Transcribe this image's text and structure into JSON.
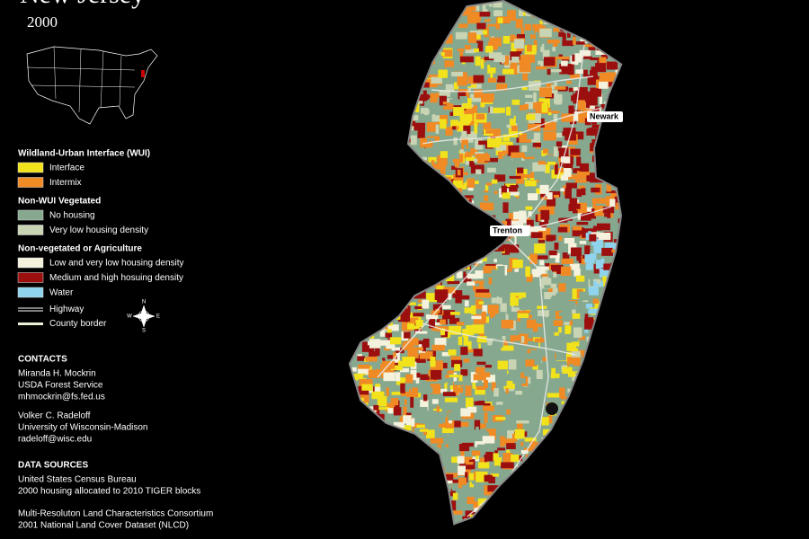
{
  "header": {
    "title": "New Jersey",
    "year": "2000"
  },
  "legend": {
    "groups": [
      {
        "title": "Wildland-Urban Interface (WUI)",
        "items": [
          {
            "label": "Interface",
            "color": "#f2e21b"
          },
          {
            "label": "Intermix",
            "color": "#f08a24"
          }
        ]
      },
      {
        "title": "Non-WUI Vegetated",
        "items": [
          {
            "label": "No housing",
            "color": "#86a88e"
          },
          {
            "label": "Very low housing density",
            "color": "#c9d4b4"
          }
        ]
      },
      {
        "title": "Non-vegetated or Agriculture",
        "items": [
          {
            "label": "Low and very low housing density",
            "color": "#f4f1dc"
          },
          {
            "label": "Medium and high hosuing density",
            "color": "#9c0f0f"
          },
          {
            "label": "Water",
            "color": "#8fd3ec"
          }
        ]
      }
    ],
    "lines": [
      {
        "label": "Highway"
      },
      {
        "label": "County border"
      }
    ]
  },
  "map": {
    "cities": [
      {
        "label": "Newark"
      },
      {
        "label": "Trenton"
      }
    ],
    "compass": [
      "N",
      "E",
      "S",
      "W"
    ]
  },
  "contacts": {
    "title": "CONTACTS",
    "people": [
      [
        "Miranda H. Mockrin",
        "USDA Forest Service",
        "mhmockrin@fs.fed.us"
      ],
      [
        "Volker C. Radeloff",
        "University of Wisconsin-Madison",
        "radeloff@wisc.edu"
      ]
    ]
  },
  "sources": {
    "title": "DATA SOURCES",
    "entries": [
      [
        "United States Census Bureau",
        "2000 housing allocated to 2010 TIGER blocks"
      ],
      [
        "Multi-Resoluton Land Characteristics Consortium",
        "2001 National Land Cover Dataset (NLCD)"
      ]
    ]
  }
}
